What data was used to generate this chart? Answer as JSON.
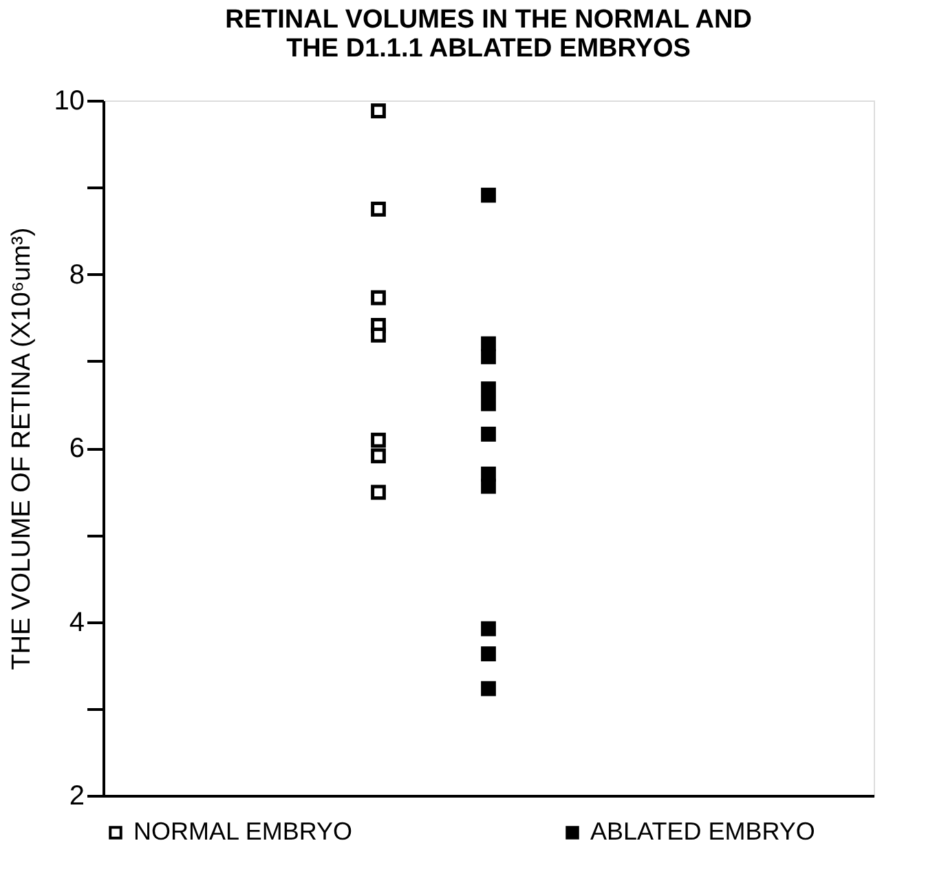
{
  "chart_data": {
    "type": "scatter",
    "title": [
      "RETINAL VOLUMES IN THE NORMAL AND",
      "THE D1.1.1 ABLATED EMBRYOS"
    ],
    "ylabel": "THE VOLUME OF RETINA  (X10⁶um³)",
    "categories": [
      null,
      null,
      null,
      null,
      null,
      null,
      null
    ],
    "ylim": [
      2,
      10
    ],
    "yticks": [
      2,
      {
        "value": 3,
        "label": null
      },
      4,
      {
        "value": 5,
        "label": null
      },
      6,
      {
        "value": 7,
        "label": null
      },
      8,
      {
        "value": 9,
        "label": null
      },
      10
    ],
    "tick_labels": "y",
    "grid": false,
    "legend": "bottom",
    "marker": "square",
    "series": [
      {
        "name": "NORMAL EMBRYO",
        "color": "#ffffff",
        "values": [
          null,
          null,
          9.88,
          null,
          null,
          null,
          null
        ]
      },
      {
        "color": "#ffffff",
        "values": [
          null,
          null,
          8.75,
          null,
          null,
          null,
          null
        ]
      },
      {
        "color": "#ffffff",
        "values": [
          null,
          null,
          7.73,
          null,
          null,
          null,
          null
        ]
      },
      {
        "color": "#ffffff",
        "values": [
          null,
          null,
          7.41,
          null,
          null,
          null,
          null
        ]
      },
      {
        "color": "#ffffff",
        "values": [
          null,
          null,
          7.3,
          null,
          null,
          null,
          null
        ]
      },
      {
        "color": "#ffffff",
        "values": [
          null,
          null,
          6.09,
          null,
          null,
          null,
          null
        ]
      },
      {
        "color": "#ffffff",
        "values": [
          null,
          null,
          5.91,
          null,
          null,
          null,
          null
        ]
      },
      {
        "color": "#ffffff",
        "values": [
          null,
          null,
          5.49,
          null,
          null,
          null,
          null
        ]
      },
      {
        "name": "ABLATED EMBRYO",
        "color": "#000000",
        "values": [
          null,
          null,
          null,
          8.91,
          null,
          null,
          null
        ]
      },
      {
        "color": "#000000",
        "values": [
          null,
          null,
          null,
          7.2,
          null,
          null,
          null
        ]
      },
      {
        "color": "#000000",
        "values": [
          null,
          null,
          null,
          7.05,
          null,
          null,
          null
        ]
      },
      {
        "color": "#000000",
        "values": [
          null,
          null,
          null,
          6.68,
          null,
          null,
          null
        ]
      },
      {
        "color": "#000000",
        "values": [
          null,
          null,
          null,
          6.51,
          null,
          null,
          null
        ]
      },
      {
        "color": "#000000",
        "values": [
          null,
          null,
          null,
          6.16,
          null,
          null,
          null
        ]
      },
      {
        "color": "#000000",
        "values": [
          null,
          null,
          null,
          5.7,
          null,
          null,
          null
        ]
      },
      {
        "color": "#000000",
        "values": [
          null,
          null,
          null,
          5.56,
          null,
          null,
          null
        ]
      },
      {
        "color": "#000000",
        "values": [
          null,
          null,
          null,
          3.92,
          null,
          null,
          null
        ]
      },
      {
        "color": "#000000",
        "values": [
          null,
          null,
          null,
          3.63,
          null,
          null,
          null
        ]
      },
      {
        "color": "#000000",
        "values": [
          null,
          null,
          null,
          3.23,
          null,
          null,
          null
        ]
      }
    ]
  }
}
